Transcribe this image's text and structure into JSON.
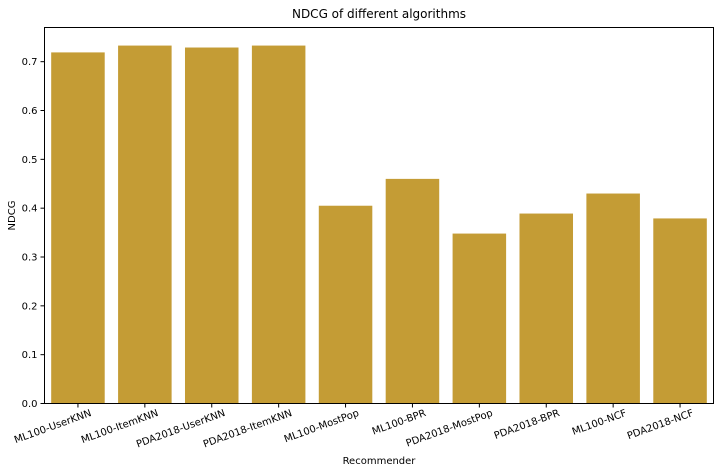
{
  "chart_data": {
    "type": "bar",
    "title": "NDCG of different algorithms",
    "xlabel": "Recommender",
    "ylabel": "NDCG",
    "categories": [
      "ML100-UserKNN",
      "ML100-ItemKNN",
      "PDA2018-UserKNN",
      "PDA2018-ItemKNN",
      "ML100-MostPop",
      "ML100-BPR",
      "PDA2018-MostPop",
      "PDA2018-BPR",
      "ML100-NCF",
      "PDA2018-NCF"
    ],
    "values": [
      0.719,
      0.733,
      0.729,
      0.733,
      0.405,
      0.46,
      0.348,
      0.389,
      0.43,
      0.379
    ],
    "ylim": [
      0,
      0.77
    ],
    "yticks": [
      "0.0",
      "0.1",
      "0.2",
      "0.3",
      "0.4",
      "0.5",
      "0.6",
      "0.7"
    ],
    "grid": false,
    "bar_color": "#c49c35"
  }
}
